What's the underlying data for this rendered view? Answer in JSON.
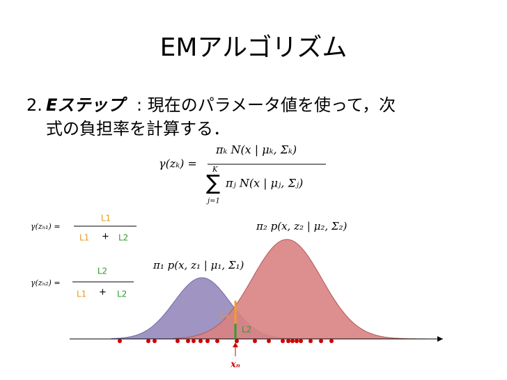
{
  "title": "EMアルゴリズム",
  "bullet": {
    "number": "2.",
    "term": "Eステップ",
    "line1": ": 現在のパラメータ値を使って，次",
    "line2": "式の負担率を計算する．"
  },
  "formula": {
    "lhs": "γ(zₖ) =",
    "numerator": "πₖ N(x | μₖ, Σₖ)",
    "sum": "∑",
    "sum_top": "K",
    "sum_bottom": "j=1",
    "denominator": "πⱼ N(x | μⱼ, Σⱼ)"
  },
  "resp1": {
    "lhs": "γ(zₙ₁) =",
    "top": "L1",
    "left": "L1",
    "plus": "+",
    "right": "L2"
  },
  "resp2": {
    "lhs": "γ(zₙ₂) =",
    "top": "L2",
    "left": "L1",
    "plus": "+",
    "right": "L2"
  },
  "curves": {
    "component1": "π₁ p(x, z₁ | μ₁, Σ₁)",
    "component2": "π₂ p(x, z₂ | μ₂, Σ₂)",
    "l1": "L1",
    "l2": "L2",
    "xn": "xₙ"
  }
}
